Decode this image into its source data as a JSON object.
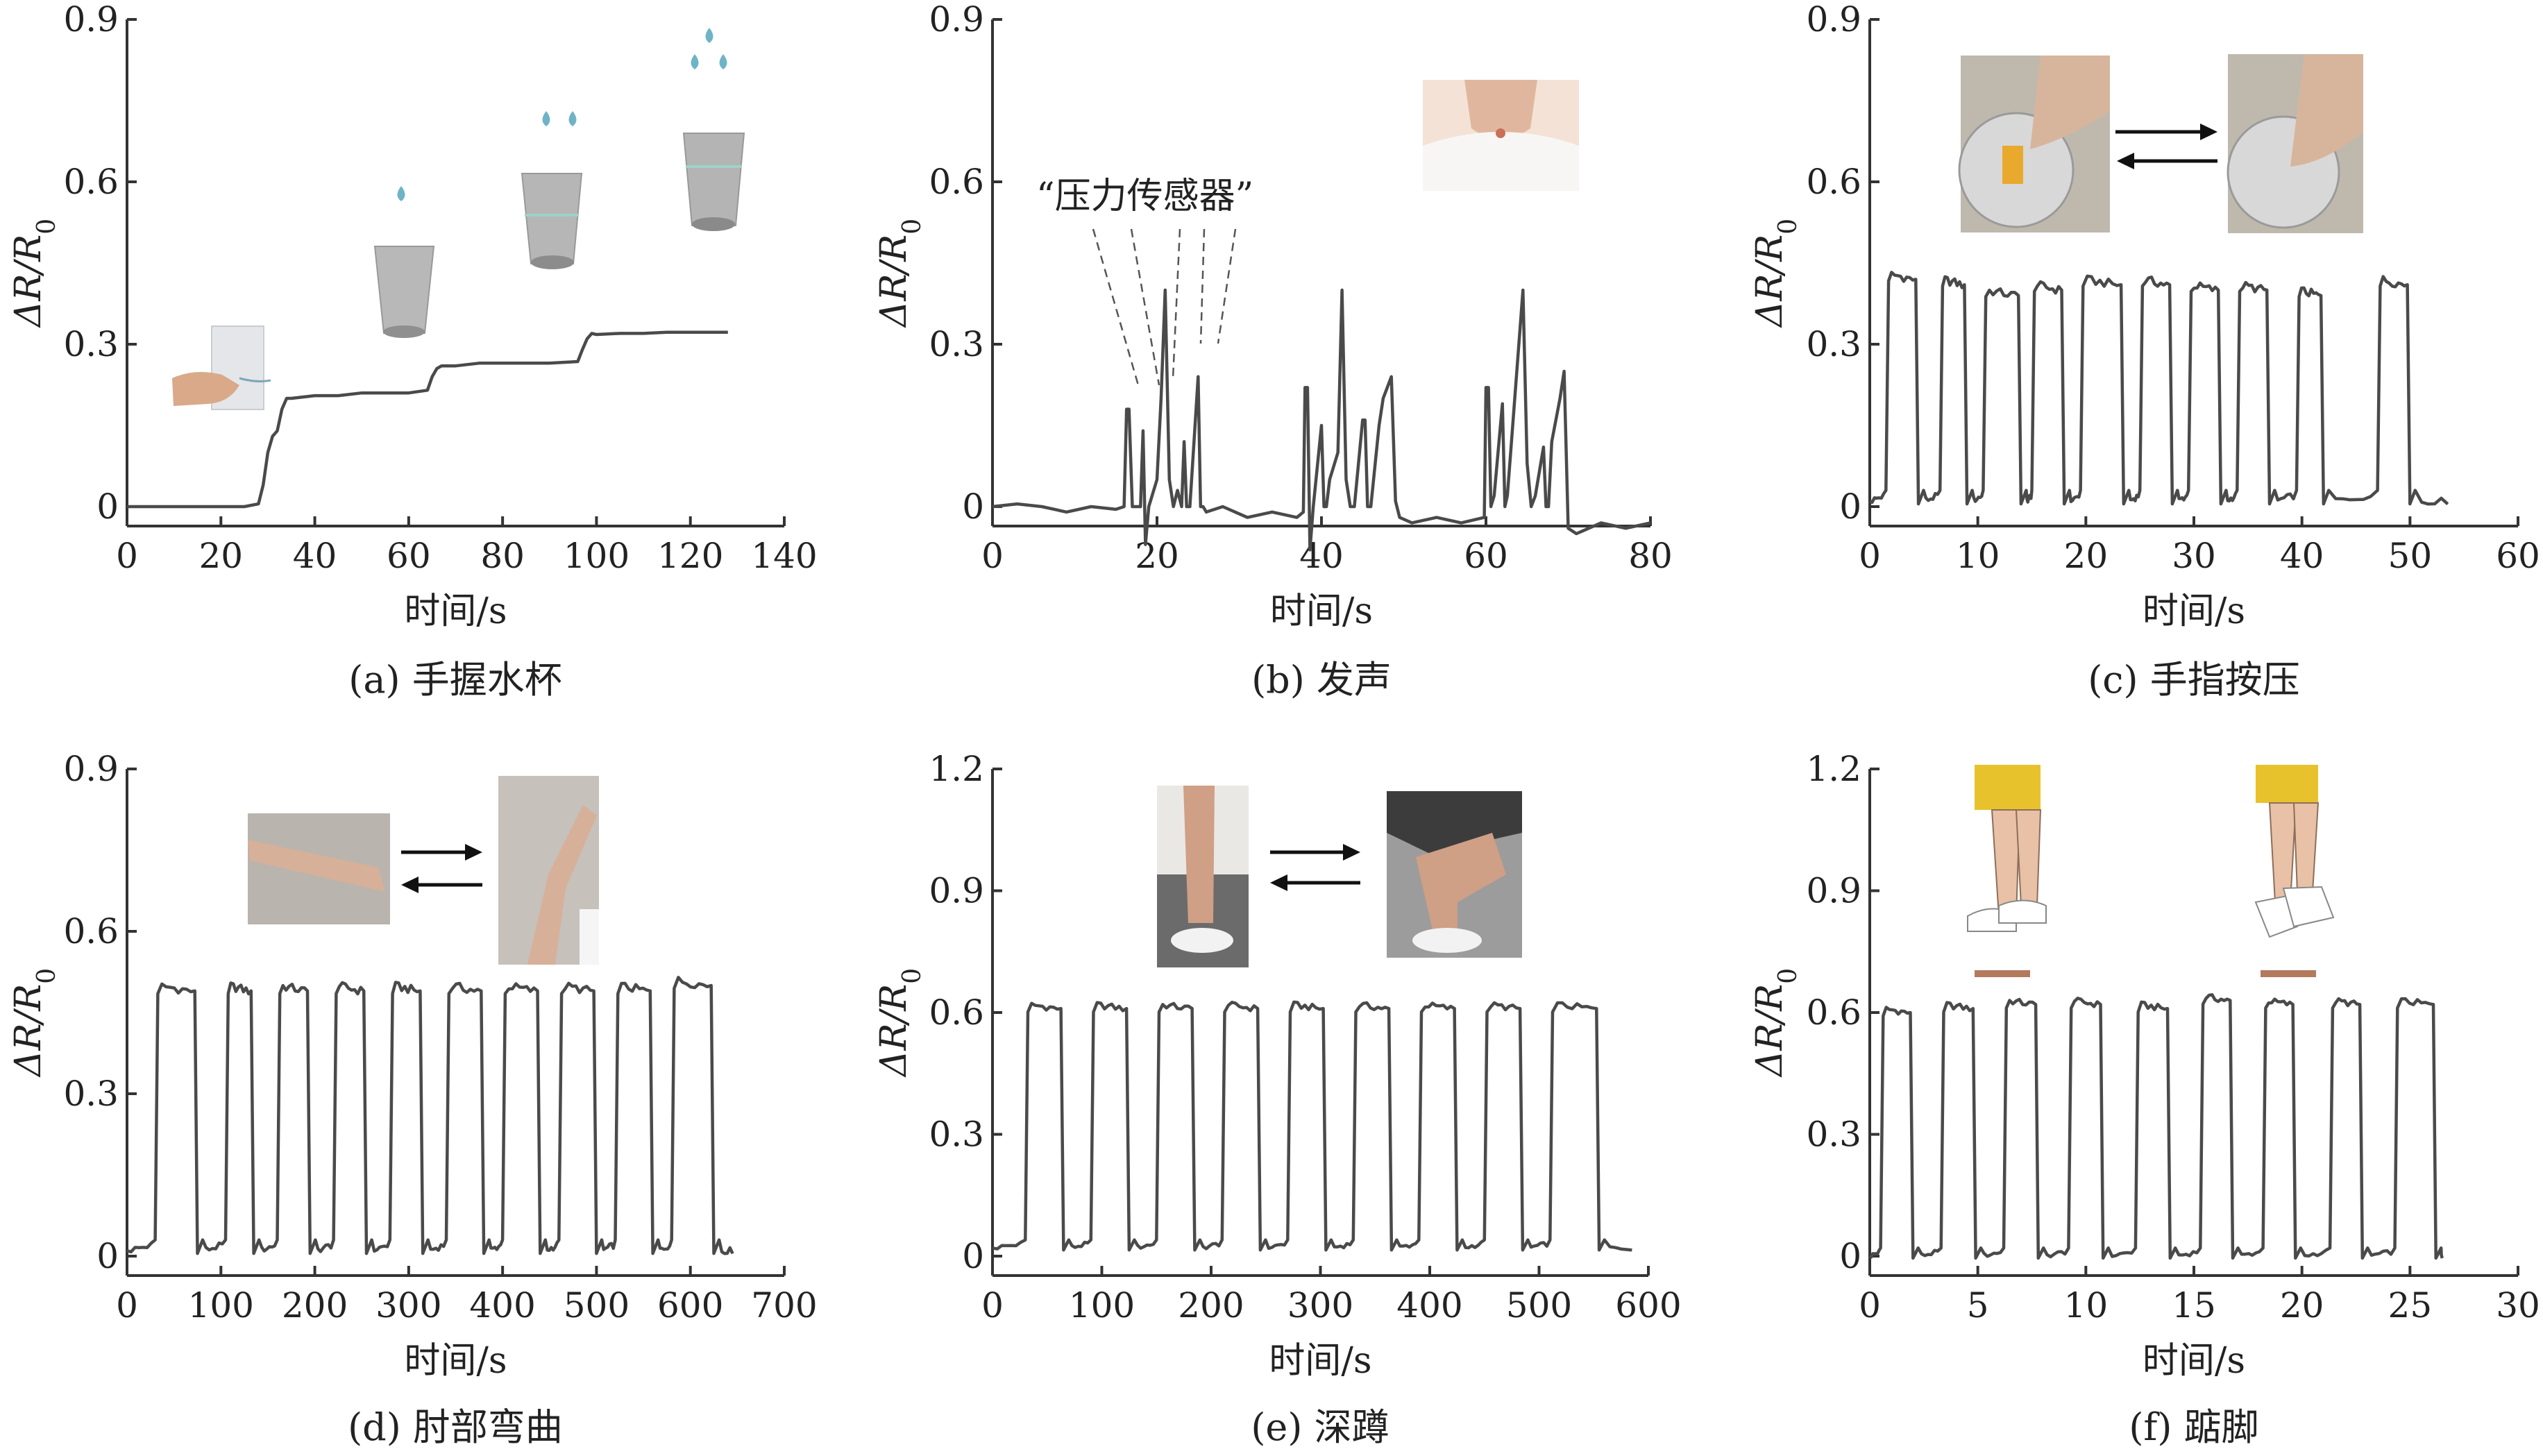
{
  "figure": {
    "panel_ids": [
      "a",
      "b",
      "c",
      "d",
      "e",
      "f"
    ]
  },
  "chart_data": [
    {
      "id": "a",
      "type": "line",
      "caption": "(a) 手握水杯",
      "xlabel": "时间/s",
      "ylabel": "ΔR/R0",
      "xlim": [
        0,
        140
      ],
      "ylim": [
        0,
        0.9
      ],
      "xticks": [
        0,
        20,
        40,
        60,
        80,
        100,
        120,
        140
      ],
      "yticks": [
        0,
        0.3,
        0.6,
        0.9
      ],
      "ytick_labels": [
        "0",
        "0.3",
        "0.6",
        "0.9"
      ],
      "series": [
        {
          "x": [
            0,
            5,
            10,
            15,
            20,
            25,
            28,
            29,
            30,
            31,
            32,
            33,
            34,
            35,
            40,
            45,
            50,
            55,
            60,
            64,
            65,
            66,
            67,
            70,
            75,
            80,
            85,
            90,
            96,
            97,
            98,
            99,
            100,
            105,
            110,
            115,
            120,
            125,
            128
          ],
          "y": [
            0,
            0,
            0,
            0,
            0,
            0,
            0.005,
            0.04,
            0.1,
            0.13,
            0.14,
            0.18,
            0.2,
            0.2,
            0.205,
            0.205,
            0.21,
            0.21,
            0.21,
            0.215,
            0.24,
            0.255,
            0.26,
            0.26,
            0.265,
            0.265,
            0.265,
            0.265,
            0.268,
            0.29,
            0.31,
            0.32,
            0.318,
            0.32,
            0.32,
            0.322,
            0.322,
            0.322,
            0.322
          ]
        }
      ],
      "illustrations": [
        "hand-holding-cup",
        "cup-1-drop",
        "cup-2-drops",
        "cup-3-drops"
      ]
    },
    {
      "id": "b",
      "type": "line",
      "caption": "(b) 发声",
      "xlabel": "时间/s",
      "ylabel": "ΔR/R0",
      "xlim": [
        0,
        80
      ],
      "ylim": [
        -0.1,
        0.9
      ],
      "xticks": [
        0,
        20,
        40,
        60,
        80
      ],
      "yticks": [
        0,
        0.3,
        0.6,
        0.9
      ],
      "ytick_labels": [
        "0",
        "0.3",
        "0.6",
        "0.9"
      ],
      "annotation": "“压力传感器”",
      "series": [
        {
          "x": [
            0,
            3,
            6,
            9,
            12,
            15,
            16,
            16.3,
            16.6,
            17,
            18,
            18.3,
            18.6,
            19,
            20,
            20.5,
            21,
            21.5,
            22,
            22.5,
            23,
            23.3,
            23.6,
            24,
            25,
            25.3,
            25.6,
            26,
            28,
            31,
            34,
            37,
            37.8,
            38,
            38.3,
            38.6,
            39,
            40,
            40.3,
            40.6,
            41,
            42,
            42.5,
            43,
            43.5,
            44,
            45,
            45.3,
            45.6,
            46,
            47,
            47.5,
            48,
            48.5,
            49,
            49.5,
            51,
            54,
            57,
            59.8,
            60,
            60.3,
            60.6,
            61,
            62,
            62.3,
            62.6,
            63,
            64,
            64.5,
            65,
            65.5,
            66,
            67,
            67.3,
            67.6,
            68,
            69,
            69.5,
            70,
            71,
            74,
            77,
            80
          ],
          "y": [
            0,
            0.005,
            0,
            -0.01,
            0,
            -0.005,
            0,
            0.18,
            0.18,
            0,
            0,
            0.14,
            -0.07,
            0,
            0.05,
            0.2,
            0.4,
            0.05,
            0,
            0.03,
            0,
            0.12,
            0,
            0,
            0.24,
            0,
            0,
            -0.01,
            0,
            -0.02,
            -0.01,
            -0.02,
            -0.01,
            0.22,
            0.22,
            -0.08,
            0,
            0.15,
            0,
            0,
            0.05,
            0.1,
            0.4,
            0.05,
            0,
            0,
            0.16,
            0.16,
            0,
            0,
            0.15,
            0.2,
            0.22,
            0.24,
            0.01,
            -0.02,
            -0.03,
            -0.02,
            -0.03,
            -0.02,
            0.22,
            0.22,
            0,
            0.02,
            0.19,
            0,
            0.02,
            0.1,
            0.3,
            0.4,
            0.08,
            0,
            0.02,
            0.11,
            0,
            0,
            0.12,
            0.2,
            0.25,
            -0.04,
            -0.05,
            -0.03,
            -0.04,
            -0.03
          ]
        }
      ],
      "illustrations": [
        "neck-photo"
      ]
    },
    {
      "id": "c",
      "type": "line",
      "caption": "(c) 手指按压",
      "xlabel": "时间/s",
      "ylabel": "ΔR/R0",
      "xlim": [
        0,
        60
      ],
      "ylim": [
        0,
        0.9
      ],
      "xticks": [
        0,
        10,
        20,
        30,
        40,
        50,
        60
      ],
      "yticks": [
        0,
        0.3,
        0.6,
        0.9
      ],
      "ytick_labels": [
        "0",
        "0.3",
        "0.6",
        "0.9"
      ],
      "cycles": {
        "starts": [
          1.5,
          6.5,
          10.5,
          15.0,
          19.5,
          25.0,
          29.5,
          34.0,
          39.5,
          47.0
        ],
        "ends": [
          4.5,
          9.0,
          14.0,
          18.0,
          23.5,
          28.0,
          32.5,
          37.0,
          42.0,
          50.0
        ],
        "peaks": [
          0.43,
          0.42,
          0.4,
          0.41,
          0.42,
          0.42,
          0.41,
          0.41,
          0.4,
          0.42
        ],
        "baseline": 0.01,
        "tail_end": 53.5
      },
      "illustrations": [
        "finger-press-photo-1",
        "finger-press-photo-2"
      ]
    },
    {
      "id": "d",
      "type": "line",
      "caption": "(d) 肘部弯曲",
      "xlabel": "时间/s",
      "ylabel": "ΔR/R0",
      "xlim": [
        0,
        700
      ],
      "ylim": [
        0,
        0.9
      ],
      "xticks": [
        0,
        100,
        200,
        300,
        400,
        500,
        600,
        700
      ],
      "yticks": [
        0,
        0.3,
        0.6,
        0.9
      ],
      "ytick_labels": [
        "0",
        "0.3",
        "0.6",
        "0.9"
      ],
      "cycles": {
        "starts": [
          30,
          105,
          160,
          220,
          280,
          340,
          400,
          460,
          520,
          580
        ],
        "ends": [
          75,
          135,
          195,
          255,
          315,
          380,
          440,
          500,
          560,
          625
        ],
        "peaks": [
          0.5,
          0.5,
          0.5,
          0.5,
          0.5,
          0.5,
          0.5,
          0.5,
          0.5,
          0.51
        ],
        "baseline": 0.01,
        "tail_end": 645
      },
      "illustrations": [
        "arm-straight-photo",
        "arm-bent-photo"
      ]
    },
    {
      "id": "e",
      "type": "line",
      "caption": "(e) 深蹲",
      "xlabel": "时间/s",
      "ylabel": "ΔR/R0",
      "xlim": [
        0,
        600
      ],
      "ylim": [
        0,
        1.2
      ],
      "xticks": [
        0,
        100,
        200,
        300,
        400,
        500,
        600
      ],
      "yticks": [
        0,
        0.3,
        0.6,
        0.9,
        1.2
      ],
      "ytick_labels": [
        "0",
        "0.3",
        "0.6",
        "0.9",
        "1.2"
      ],
      "cycles": {
        "starts": [
          30,
          90,
          150,
          210,
          270,
          330,
          390,
          450,
          510
        ],
        "ends": [
          65,
          125,
          185,
          245,
          305,
          365,
          425,
          485,
          555
        ],
        "peaks": [
          0.62,
          0.62,
          0.62,
          0.62,
          0.62,
          0.62,
          0.62,
          0.62,
          0.62
        ],
        "baseline": 0.02,
        "tail_end": 585
      },
      "illustrations": [
        "leg-standing-photo",
        "leg-squatting-photo"
      ]
    },
    {
      "id": "f",
      "type": "line",
      "caption": "(f) 踮脚",
      "xlabel": "时间/s",
      "ylabel": "ΔR/R0",
      "xlim": [
        0,
        30
      ],
      "ylim": [
        0,
        1.2
      ],
      "xticks": [
        0,
        5,
        10,
        15,
        20,
        25,
        30
      ],
      "yticks": [
        0,
        0.3,
        0.6,
        0.9,
        1.2
      ],
      "ytick_labels": [
        "0",
        "0.3",
        "0.6",
        "0.9",
        "1.2"
      ],
      "cycles": {
        "starts": [
          0.5,
          3.3,
          6.2,
          9.2,
          12.3,
          15.3,
          18.2,
          21.3,
          24.3
        ],
        "ends": [
          2.0,
          4.9,
          7.8,
          10.8,
          13.9,
          16.8,
          19.7,
          22.8,
          26.2
        ],
        "peaks": [
          0.61,
          0.62,
          0.63,
          0.63,
          0.62,
          0.64,
          0.63,
          0.63,
          0.63
        ],
        "baseline": 0.0,
        "tail_end": 26.5
      },
      "illustrations": [
        "foot-flat-drawing",
        "foot-tiptoe-drawing"
      ]
    }
  ]
}
